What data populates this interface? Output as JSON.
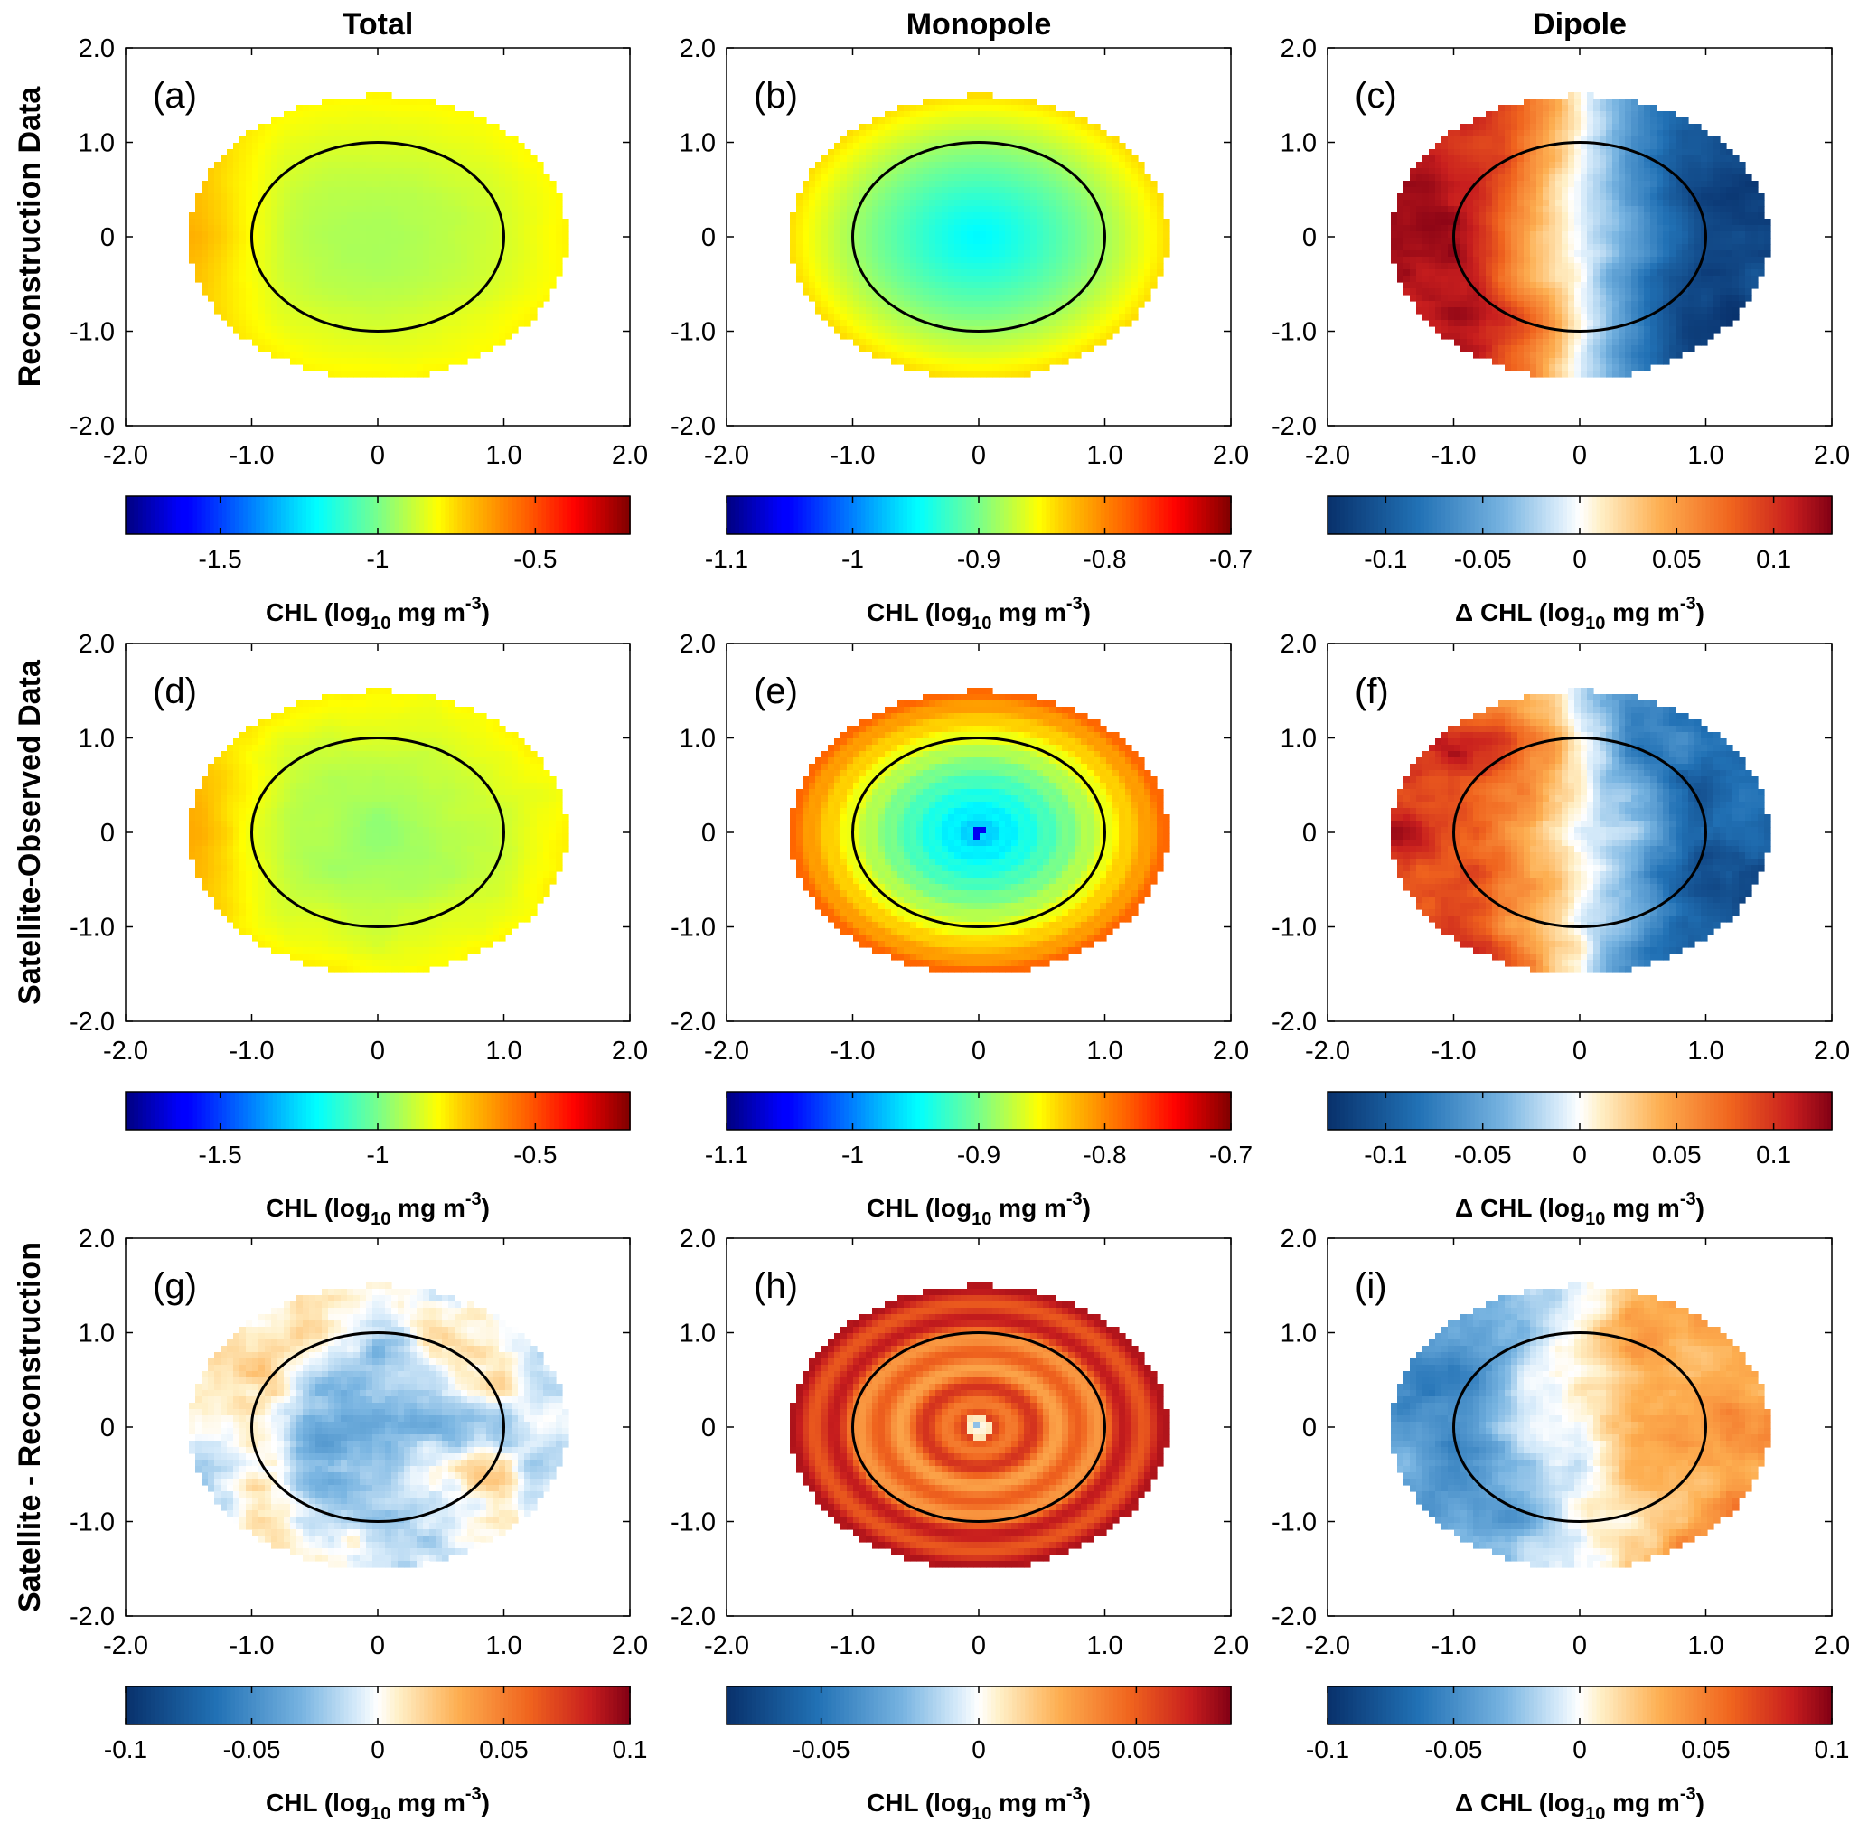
{
  "columns": [
    "Total",
    "Monopole",
    "Dipole"
  ],
  "rows": [
    "Reconstruction Data",
    "Satellite-Observed Data",
    "Satellite - Reconstruction"
  ],
  "axis_ticks": [
    "-2.0",
    "-1.0",
    "0",
    "1.0",
    "2.0"
  ],
  "chart_data": [
    {
      "id": "a",
      "label": "(a)",
      "type": "heatmap",
      "row": "Reconstruction Data",
      "column": "Total",
      "xlim": [
        -2,
        2
      ],
      "ylim": [
        -2,
        2
      ],
      "domain": "ellipse radius 1.5 x 1.5",
      "circle_radius": 1.0,
      "colormap": "jet",
      "clim": [
        -1.8,
        -0.2
      ],
      "colorbar_ticks": [
        -1.5,
        -1,
        -0.5
      ],
      "colorbar_tick_labels": [
        "-1.5",
        "-1",
        "-0.5"
      ],
      "colorbar_label": {
        "prefix": "",
        "main": "CHL (log",
        "sub": "10",
        "units": " mg m",
        "sup": "-3",
        "close": ")"
      },
      "field": {
        "kind": "total",
        "center": -0.93,
        "edge": -0.8,
        "west": -0.68,
        "noise": 0.015
      }
    },
    {
      "id": "b",
      "label": "(b)",
      "type": "heatmap",
      "row": "Reconstruction Data",
      "column": "Monopole",
      "xlim": [
        -2,
        2
      ],
      "ylim": [
        -2,
        2
      ],
      "domain": "ellipse radius 1.5 x 1.5",
      "circle_radius": 1.0,
      "colormap": "jet",
      "clim": [
        -1.1,
        -0.7
      ],
      "colorbar_ticks": [
        -1.1,
        -1,
        -0.9,
        -0.8,
        -0.7
      ],
      "colorbar_tick_labels": [
        "-1.1",
        "-1",
        "-0.9",
        "-0.8",
        "-0.7"
      ],
      "colorbar_label": {
        "prefix": "",
        "main": "CHL (log",
        "sub": "10",
        "units": " mg m",
        "sup": "-3",
        "close": ")"
      },
      "field": {
        "kind": "radial",
        "center": -0.95,
        "edge": -0.84,
        "ringAmp": 0,
        "ringFreq": 0
      }
    },
    {
      "id": "c",
      "label": "(c)",
      "type": "heatmap",
      "row": "Reconstruction Data",
      "column": "Dipole",
      "xlim": [
        -2,
        2
      ],
      "ylim": [
        -2,
        2
      ],
      "domain": "ellipse radius 1.5 x 1.5",
      "circle_radius": 1.0,
      "colormap": "diverging",
      "clim": [
        -0.13,
        0.13
      ],
      "colorbar_ticks": [
        -0.1,
        -0.05,
        0,
        0.05,
        0.1
      ],
      "colorbar_tick_labels": [
        "-0.1",
        "-0.05",
        "0",
        "0.05",
        "0.1"
      ],
      "colorbar_label": {
        "prefix": "Δ ",
        "main": "CHL (log",
        "sub": "10",
        "units": " mg m",
        "sup": "-3",
        "close": ")"
      },
      "field": {
        "kind": "dipole",
        "amp": 0.12,
        "noise": 0.025
      }
    },
    {
      "id": "d",
      "label": "(d)",
      "type": "heatmap",
      "row": "Satellite-Observed Data",
      "column": "Total",
      "xlim": [
        -2,
        2
      ],
      "ylim": [
        -2,
        2
      ],
      "domain": "ellipse radius 1.5 x 1.5",
      "circle_radius": 1.0,
      "colormap": "jet",
      "clim": [
        -1.8,
        -0.2
      ],
      "colorbar_ticks": [
        -1.5,
        -1,
        -0.5
      ],
      "colorbar_tick_labels": [
        "-1.5",
        "-1",
        "-0.5"
      ],
      "colorbar_label": {
        "prefix": "",
        "main": "CHL (log",
        "sub": "10",
        "units": " mg m",
        "sup": "-3",
        "close": ")"
      },
      "field": {
        "kind": "total",
        "center": -0.95,
        "edge": -0.8,
        "west": -0.66,
        "noise": 0.035
      }
    },
    {
      "id": "e",
      "label": "(e)",
      "type": "heatmap",
      "row": "Satellite-Observed Data",
      "column": "Monopole",
      "xlim": [
        -2,
        2
      ],
      "ylim": [
        -2,
        2
      ],
      "domain": "ellipse radius 1.5 x 1.5",
      "circle_radius": 1.0,
      "colormap": "jet",
      "clim": [
        -1.1,
        -0.7
      ],
      "colorbar_ticks": [
        -1.1,
        -1,
        -0.9,
        -0.8,
        -0.7
      ],
      "colorbar_tick_labels": [
        "-1.1",
        "-1",
        "-0.9",
        "-0.8",
        "-0.7"
      ],
      "colorbar_label": {
        "prefix": "",
        "main": "CHL (log",
        "sub": "10",
        "units": " mg m",
        "sup": "-3",
        "close": ")"
      },
      "field": {
        "kind": "radial",
        "center": -0.97,
        "edge": -0.785,
        "ringAmp": 0.006,
        "ringFreq": 40,
        "dot": -1.06
      }
    },
    {
      "id": "f",
      "label": "(f)",
      "type": "heatmap",
      "row": "Satellite-Observed Data",
      "column": "Dipole",
      "xlim": [
        -2,
        2
      ],
      "ylim": [
        -2,
        2
      ],
      "domain": "ellipse radius 1.5 x 1.5",
      "circle_radius": 1.0,
      "colormap": "diverging",
      "clim": [
        -0.13,
        0.13
      ],
      "colorbar_ticks": [
        -0.1,
        -0.05,
        0,
        0.05,
        0.1
      ],
      "colorbar_tick_labels": [
        "-0.1",
        "-0.05",
        "0",
        "0.05",
        "0.1"
      ],
      "colorbar_label": {
        "prefix": "Δ ",
        "main": "CHL (log",
        "sub": "10",
        "units": " mg m",
        "sup": "-3",
        "close": ")"
      },
      "field": {
        "kind": "dipole",
        "amp": 0.1,
        "noise": 0.04
      }
    },
    {
      "id": "g",
      "label": "(g)",
      "type": "heatmap",
      "row": "Satellite - Reconstruction",
      "column": "Total",
      "xlim": [
        -2,
        2
      ],
      "ylim": [
        -2,
        2
      ],
      "domain": "ellipse radius 1.5 x 1.5",
      "circle_radius": 1.0,
      "colormap": "diverging",
      "clim": [
        -0.1,
        0.1
      ],
      "colorbar_ticks": [
        -0.1,
        -0.05,
        0,
        0.05,
        0.1
      ],
      "colorbar_tick_labels": [
        "-0.1",
        "-0.05",
        "0",
        "0.05",
        "0.1"
      ],
      "colorbar_label": {
        "prefix": "",
        "main": "CHL (log",
        "sub": "10",
        "units": " mg m",
        "sup": "-3",
        "close": ")"
      },
      "field": {
        "kind": "diff",
        "bias": -0.015,
        "noise": 0.04
      }
    },
    {
      "id": "h",
      "label": "(h)",
      "type": "heatmap",
      "row": "Satellite - Reconstruction",
      "column": "Monopole",
      "xlim": [
        -2,
        2
      ],
      "ylim": [
        -2,
        2
      ],
      "domain": "ellipse radius 1.5 x 1.5",
      "circle_radius": 1.0,
      "colormap": "diverging",
      "clim": [
        -0.08,
        0.08
      ],
      "colorbar_ticks": [
        -0.05,
        0,
        0.05
      ],
      "colorbar_tick_labels": [
        "-0.05",
        "0",
        "0.05"
      ],
      "colorbar_label": {
        "prefix": "",
        "main": "CHL (log",
        "sub": "10",
        "units": " mg m",
        "sup": "-3",
        "close": ")"
      },
      "field": {
        "kind": "rings",
        "center": 0.04,
        "edge": 0.055,
        "ringAmp": 0.012,
        "ringFreq": 18,
        "dot": -0.02
      }
    },
    {
      "id": "i",
      "label": "(i)",
      "type": "heatmap",
      "row": "Satellite - Reconstruction",
      "column": "Dipole",
      "xlim": [
        -2,
        2
      ],
      "ylim": [
        -2,
        2
      ],
      "domain": "ellipse radius 1.5 x 1.5",
      "circle_radius": 1.0,
      "colormap": "diverging",
      "clim": [
        -0.1,
        0.1
      ],
      "colorbar_ticks": [
        -0.1,
        -0.05,
        0,
        0.05,
        0.1
      ],
      "colorbar_tick_labels": [
        "-0.1",
        "-0.05",
        "0",
        "0.05",
        "0.1"
      ],
      "colorbar_label": {
        "prefix": "Δ ",
        "main": "CHL (log",
        "sub": "10",
        "units": " mg m",
        "sup": "-3",
        "close": ")"
      },
      "field": {
        "kind": "dipole",
        "amp": -0.045,
        "noise": 0.03
      }
    }
  ]
}
